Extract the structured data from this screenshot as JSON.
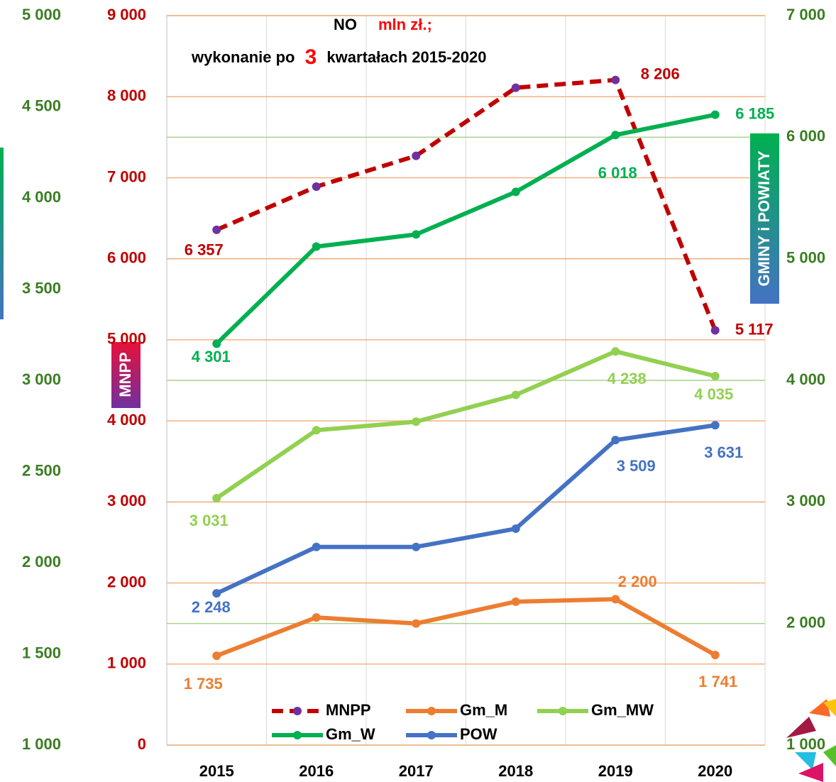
{
  "chart_data": {
    "type": "line",
    "title": "NO",
    "title_unit": "mln zł.;",
    "subtitle_parts": [
      "wykonanie po",
      "3",
      "kwartałach 2015-2020"
    ],
    "left_badge": "MNPP",
    "right_badge": "GMINY i POWIATY",
    "categories": [
      "2015",
      "2016",
      "2017",
      "2018",
      "2019",
      "2020"
    ],
    "ylim": [
      0,
      9000
    ],
    "yticks": [
      0,
      {
        "value": 1000,
        "label": "1 000"
      },
      {
        "value": 2000,
        "label": "2 000"
      },
      {
        "value": 3000,
        "label": "3 000"
      },
      {
        "value": 4000,
        "label": "4 000"
      },
      {
        "value": 5000,
        "label": "5 000"
      },
      {
        "value": 6000,
        "label": "6 000"
      },
      {
        "value": 7000,
        "label": "7 000"
      },
      {
        "value": 8000,
        "label": "8 000"
      },
      {
        "value": 9000,
        "label": "9 000"
      }
    ],
    "y2lim": [
      1000,
      7000
    ],
    "y2ticks": [
      {
        "value": 1000,
        "label": "1 000"
      },
      {
        "value": 2000,
        "label": "2 000"
      },
      {
        "value": 3000,
        "label": "3 000"
      },
      {
        "value": 4000,
        "label": "4 000"
      },
      {
        "value": 5000,
        "label": "5 000"
      },
      {
        "value": 6000,
        "label": "6 000"
      },
      {
        "value": 7000,
        "label": "7 000"
      }
    ],
    "y3lim": [
      1000,
      5000
    ],
    "y3ticks": [
      {
        "value": 1000,
        "label": "1 000"
      },
      {
        "value": 1500,
        "label": "1 500"
      },
      {
        "value": 2000,
        "label": "2 000"
      },
      {
        "value": 2500,
        "label": "2 500"
      },
      {
        "value": 3000,
        "label": "3 000"
      },
      {
        "value": 3500,
        "label": "3 500"
      },
      {
        "value": 4000,
        "label": "4 000"
      },
      {
        "value": 4500,
        "label": "4 500"
      },
      {
        "value": 5000,
        "label": "5 000"
      }
    ],
    "grid": true,
    "series": [
      {
        "name": "MNPP",
        "color": "#c00000",
        "marker_color": "#7030a0",
        "dashed": true,
        "axis": "y",
        "values": [
          6357,
          6890,
          7270,
          8110,
          8206,
          5117
        ],
        "value_labels": [
          "6 357",
          null,
          null,
          null,
          "8 206",
          "5 117"
        ]
      },
      {
        "name": "Gm_M",
        "color": "#ed7d31",
        "axis": "y2",
        "values": [
          1735,
          2050,
          2000,
          2180,
          2200,
          1741
        ],
        "value_labels": [
          "1 735",
          null,
          null,
          null,
          "2 200",
          "1 741"
        ]
      },
      {
        "name": "Gm_MW",
        "color": "#92d050",
        "axis": "y2",
        "values": [
          3031,
          3590,
          3660,
          3880,
          4238,
          4035
        ],
        "value_labels": [
          "3 031",
          null,
          null,
          null,
          "4 238",
          "4 035"
        ]
      },
      {
        "name": "Gm_W",
        "color": "#00b050",
        "axis": "y2",
        "values": [
          4301,
          5100,
          5200,
          5550,
          6018,
          6185
        ],
        "value_labels": [
          "4 301",
          null,
          null,
          null,
          "6 018",
          "6 185"
        ]
      },
      {
        "name": "POW",
        "color": "#4472c4",
        "axis": "y2",
        "values": [
          2248,
          2630,
          2630,
          2780,
          3509,
          3631
        ],
        "value_labels": [
          "2 248",
          null,
          null,
          null,
          "3 509",
          "3 631"
        ]
      }
    ]
  }
}
